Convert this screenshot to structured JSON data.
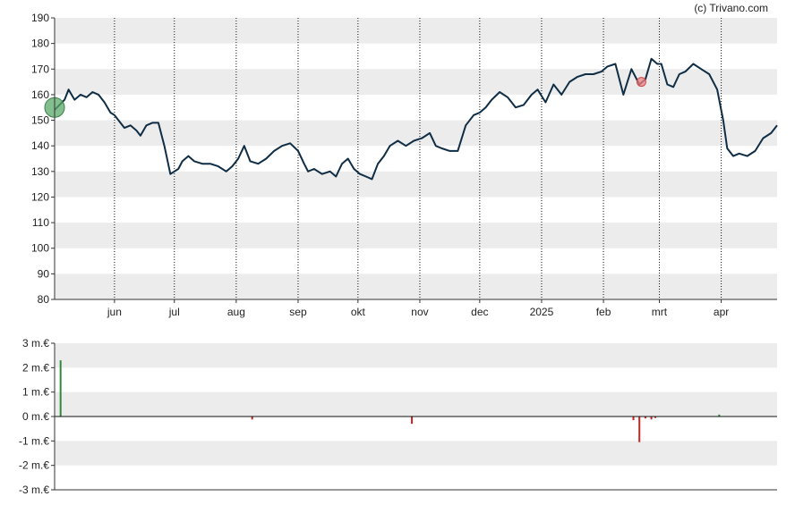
{
  "credit": "(c) Trivano.com",
  "colors": {
    "line": "#0f2d45",
    "band": "#ececec",
    "buy": "#2e8b3a",
    "sell": "#d62020",
    "buy_marker": "#5aa86a",
    "sell_marker": "#f08080"
  },
  "chart_data": [
    {
      "type": "line",
      "grid": true,
      "ylim": [
        80,
        190
      ],
      "y_ticks": [
        "80",
        "90",
        "100",
        "110",
        "120",
        "130",
        "140",
        "150",
        "160",
        "170",
        "180",
        "190"
      ],
      "x_ticks": [
        {
          "label": "jun",
          "date": "2024-06-01"
        },
        {
          "label": "jul",
          "date": "2024-07-01"
        },
        {
          "label": "aug",
          "date": "2024-08-01"
        },
        {
          "label": "sep",
          "date": "2024-09-01"
        },
        {
          "label": "okt",
          "date": "2024-10-01"
        },
        {
          "label": "nov",
          "date": "2024-11-01"
        },
        {
          "label": "dec",
          "date": "2024-12-01"
        },
        {
          "label": "2025",
          "date": "2025-01-01"
        },
        {
          "label": "feb",
          "date": "2025-02-01"
        },
        {
          "label": "mrt",
          "date": "2025-03-01"
        },
        {
          "label": "apr",
          "date": "2025-04-01"
        }
      ],
      "x_range": [
        "2024-05-02",
        "2025-04-29"
      ],
      "series": [
        {
          "x": [
            "2024-05-02",
            "2024-05-07",
            "2024-05-09",
            "2024-05-12",
            "2024-05-15",
            "2024-05-18",
            "2024-05-21",
            "2024-05-24",
            "2024-05-27",
            "2024-05-30",
            "2024-06-01",
            "2024-06-03",
            "2024-06-06",
            "2024-06-09",
            "2024-06-12",
            "2024-06-14",
            "2024-06-17",
            "2024-06-20",
            "2024-06-23",
            "2024-06-26",
            "2024-06-29",
            "2024-07-01",
            "2024-07-03",
            "2024-07-05",
            "2024-07-08",
            "2024-07-11",
            "2024-07-15",
            "2024-07-19",
            "2024-07-23",
            "2024-07-27",
            "2024-07-30",
            "2024-08-02",
            "2024-08-05",
            "2024-08-08",
            "2024-08-12",
            "2024-08-16",
            "2024-08-20",
            "2024-08-24",
            "2024-08-28",
            "2024-09-01",
            "2024-09-04",
            "2024-09-06",
            "2024-09-09",
            "2024-09-13",
            "2024-09-17",
            "2024-09-20",
            "2024-09-23",
            "2024-09-26",
            "2024-09-29",
            "2024-10-02",
            "2024-10-05",
            "2024-10-08",
            "2024-10-11",
            "2024-10-14",
            "2024-10-17",
            "2024-10-21",
            "2024-10-25",
            "2024-10-29",
            "2024-11-02",
            "2024-11-06",
            "2024-11-09",
            "2024-11-12",
            "2024-11-16",
            "2024-11-20",
            "2024-11-24",
            "2024-11-28",
            "2024-12-01",
            "2024-12-04",
            "2024-12-07",
            "2024-12-11",
            "2024-12-15",
            "2024-12-19",
            "2024-12-23",
            "2024-12-27",
            "2024-12-30",
            "2025-01-03",
            "2025-01-07",
            "2025-01-11",
            "2025-01-15",
            "2025-01-19",
            "2025-01-23",
            "2025-01-27",
            "2025-01-31",
            "2025-02-03",
            "2025-02-07",
            "2025-02-11",
            "2025-02-15",
            "2025-02-19",
            "2025-02-22",
            "2025-02-25",
            "2025-02-28",
            "2025-03-02",
            "2025-03-05",
            "2025-03-08",
            "2025-03-11",
            "2025-03-14",
            "2025-03-18",
            "2025-03-22",
            "2025-03-26",
            "2025-03-30",
            "2025-04-02",
            "2025-04-04",
            "2025-04-07",
            "2025-04-10",
            "2025-04-14",
            "2025-04-18",
            "2025-04-22",
            "2025-04-26",
            "2025-04-29"
          ],
          "y": [
            154,
            158,
            162,
            158,
            160,
            159,
            161,
            160,
            157,
            153,
            152,
            150,
            147,
            148,
            146,
            144,
            148,
            149,
            149,
            140,
            129,
            130,
            131,
            134,
            136,
            134,
            133,
            133,
            132,
            130,
            132,
            135,
            140,
            134,
            133,
            135,
            138,
            140,
            141,
            138,
            133,
            130,
            131,
            129,
            130,
            128,
            133,
            135,
            131,
            129,
            128,
            127,
            133,
            136,
            140,
            142,
            140,
            142,
            143,
            145,
            140,
            139,
            138,
            138,
            148,
            152,
            153,
            155,
            158,
            161,
            159,
            155,
            156,
            160,
            162,
            157,
            164,
            160,
            165,
            167,
            168,
            168,
            169,
            171,
            172,
            160,
            170,
            164,
            166,
            174,
            172,
            172,
            164,
            163,
            168,
            169,
            172,
            170,
            168,
            162,
            150,
            139,
            136,
            137,
            136,
            138,
            143,
            145,
            148
          ]
        }
      ],
      "markers": [
        {
          "kind": "buy",
          "date": "2024-05-02",
          "value": 155
        },
        {
          "kind": "sell",
          "date": "2025-02-20",
          "value": 165
        }
      ]
    },
    {
      "type": "bar",
      "grid": true,
      "ylim": [
        -3,
        3
      ],
      "unit": "m.€",
      "y_ticks": [
        "-3 m.€",
        "-2 m.€",
        "-1 m.€",
        "0 m.€",
        "1 m.€",
        "2 m.€",
        "3 m.€"
      ],
      "bars": [
        {
          "date": "2024-05-05",
          "value": 2.3
        },
        {
          "date": "2024-08-09",
          "value": -0.12
        },
        {
          "date": "2024-10-28",
          "value": -0.3
        },
        {
          "date": "2025-02-16",
          "value": -0.15
        },
        {
          "date": "2025-02-19",
          "value": -1.05
        },
        {
          "date": "2025-02-22",
          "value": -0.08
        },
        {
          "date": "2025-02-25",
          "value": -0.12
        },
        {
          "date": "2025-02-27",
          "value": -0.06
        },
        {
          "date": "2025-03-31",
          "value": 0.08
        }
      ]
    }
  ]
}
